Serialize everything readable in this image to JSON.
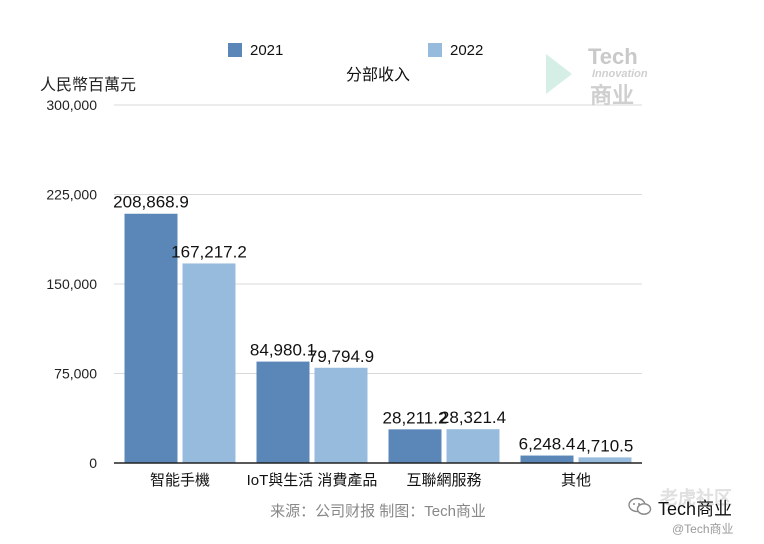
{
  "chart_data": {
    "type": "bar",
    "title": "分部收入",
    "ylabel": "人民幣百萬元",
    "xlabel": "",
    "categories": [
      "智能手機",
      "IoT與生活 消費產品",
      "互聯網服務",
      "其他"
    ],
    "series": [
      {
        "name": "2021",
        "values": [
          208868.9,
          84980.1,
          28211.2,
          6248.4
        ],
        "labels": [
          "208,868.9",
          "84,980.1",
          "28,211.2",
          "6,248.4"
        ],
        "color": "#5b86b8"
      },
      {
        "name": "2022",
        "values": [
          167217.2,
          79794.9,
          28321.4,
          4710.5
        ],
        "labels": [
          "167,217.2",
          "79,794.9",
          "28,321.4",
          "4,710.5"
        ],
        "color": "#97bbdc"
      }
    ],
    "ylim": [
      0,
      300000
    ],
    "yticks": [
      0,
      75000,
      150000,
      225000,
      300000
    ],
    "ytick_labels": [
      "0",
      "75,000",
      "150,000",
      "225,000",
      "300,000"
    ],
    "grid": true,
    "legend": "top-center",
    "source": "来源：公司财报 制图：Tech商业"
  },
  "watermark": {
    "brand": "Tech",
    "tagline": "Innovation",
    "brand_cn": "商业"
  },
  "footer": {
    "blurred_text": "老虎社区",
    "channel": "Tech商业",
    "handle": "@Tech商业"
  }
}
